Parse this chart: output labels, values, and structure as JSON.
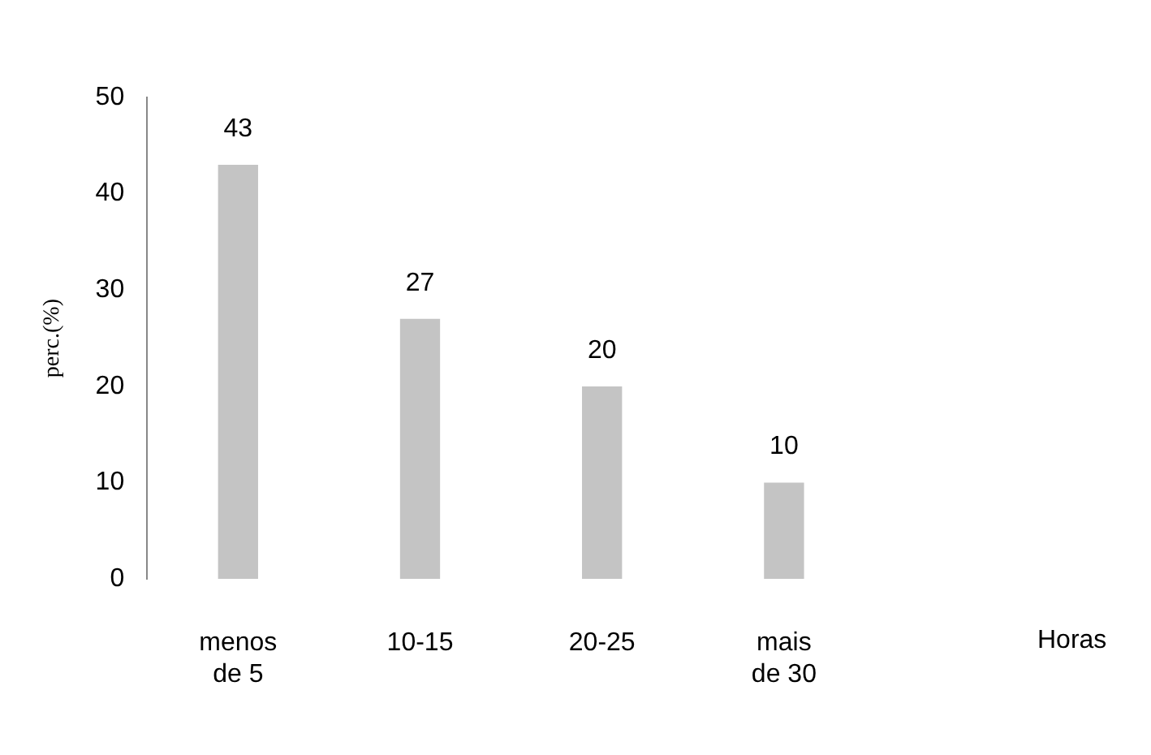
{
  "chart_data": {
    "type": "bar",
    "ylabel": "perc.(%)",
    "annotations": [
      "Horas"
    ],
    "categories": [
      "menos de 5",
      "10-15",
      "20-25",
      "mais de 30"
    ],
    "values": [
      43,
      27,
      20,
      10
    ],
    "color": "#c4c4c4",
    "ylim": [
      0,
      50
    ],
    "yticks": [
      0,
      10,
      20,
      30,
      40,
      50
    ],
    "grid": false,
    "data_labels": true,
    "legend": false
  }
}
